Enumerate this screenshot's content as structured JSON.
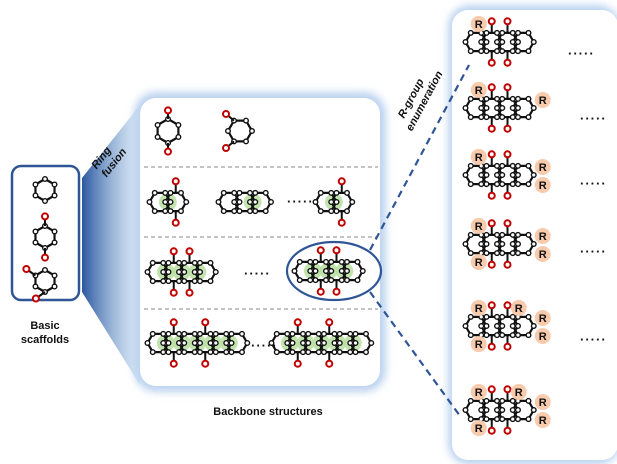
{
  "labels": {
    "basic_scaffolds_line1": "Basic",
    "basic_scaffolds_line2": "scaffolds",
    "ring_fusion_line1": "Ring",
    "ring_fusion_line2": "fusion",
    "backbone_structures": "Backbone structures",
    "rgroup_line1": "R-group",
    "rgroup_line2": "enumeration"
  },
  "r_label": "R",
  "ellipsis": "·····",
  "colors": {
    "panel_border": "#2f5597",
    "panel_glow": "#bcd3f0",
    "bond": "#111111",
    "atom": "#c00000",
    "fusion_highlight": "#b7dea0",
    "r_highlight": "#f8cbad",
    "dashed_line": "#2f5597",
    "divider": "#888888"
  },
  "icons": [
    "hexagon-ring-icon",
    "molecule-icon",
    "r-group-badge-icon"
  ]
}
